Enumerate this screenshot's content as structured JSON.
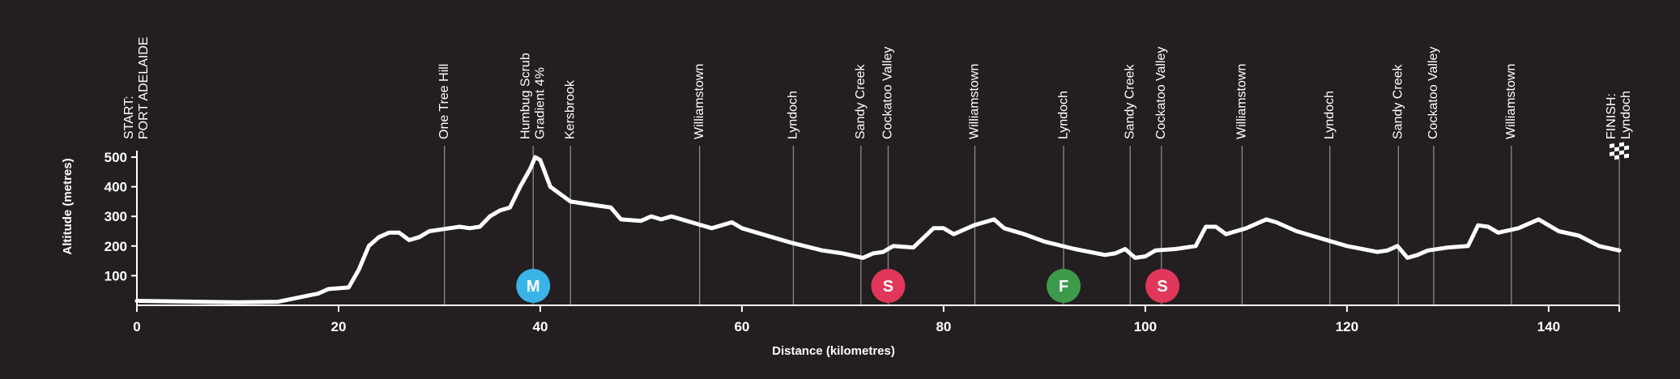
{
  "chart_data": {
    "type": "line",
    "color": "#ffffff",
    "background": "#231f20",
    "x_label": "Distance (kilometres)",
    "y_label": "Altitude (metres)",
    "xlim": [
      0,
      147
    ],
    "ylim": [
      0,
      500
    ],
    "xticks": [
      0,
      20,
      40,
      60,
      80,
      100,
      120,
      140
    ],
    "yticks": [
      100,
      200,
      300,
      400,
      500
    ],
    "x": [
      0,
      10,
      14,
      18,
      19,
      21,
      22,
      23,
      24,
      25,
      26,
      27,
      28,
      29,
      31,
      32,
      33,
      34,
      35,
      36,
      37,
      38,
      39,
      39.5,
      40,
      41,
      43,
      45,
      47,
      48,
      50,
      51,
      52,
      53,
      55,
      57,
      59,
      60,
      62,
      65,
      68,
      70,
      72,
      73,
      74,
      75,
      77,
      79,
      80,
      81,
      83,
      85,
      86,
      88,
      90,
      93,
      96,
      97,
      98,
      99,
      100,
      101,
      103,
      105,
      106,
      107,
      108,
      110,
      112,
      113,
      115,
      117,
      120,
      123,
      124,
      125,
      126,
      127,
      128,
      130,
      132,
      133,
      134,
      135,
      137,
      139,
      140,
      141,
      143,
      145,
      147
    ],
    "values": [
      15,
      10,
      12,
      40,
      55,
      60,
      120,
      200,
      230,
      245,
      245,
      220,
      230,
      250,
      260,
      265,
      260,
      265,
      300,
      320,
      330,
      400,
      460,
      500,
      490,
      400,
      350,
      340,
      330,
      290,
      285,
      300,
      290,
      300,
      280,
      260,
      280,
      260,
      240,
      210,
      185,
      175,
      160,
      175,
      180,
      200,
      195,
      260,
      260,
      240,
      270,
      290,
      260,
      240,
      215,
      190,
      170,
      175,
      190,
      160,
      165,
      185,
      190,
      200,
      265,
      265,
      240,
      260,
      290,
      280,
      250,
      230,
      200,
      180,
      185,
      200,
      160,
      170,
      185,
      195,
      200,
      270,
      265,
      245,
      260,
      290,
      270,
      250,
      235,
      200,
      185
    ],
    "landmarks": [
      {
        "label": [
          "START:",
          "PORT ADELAIDE"
        ],
        "x": 0,
        "line": false
      },
      {
        "label": [
          "One Tree Hill"
        ],
        "x": 30.5
      },
      {
        "label": [
          "Humbug Scrub",
          "Gradient 4%"
        ],
        "x": 39.3
      },
      {
        "label": [
          "Kersbrook"
        ],
        "x": 43.0
      },
      {
        "label": [
          "Williamstown"
        ],
        "x": 55.8
      },
      {
        "label": [
          "Lyndoch"
        ],
        "x": 65.1
      },
      {
        "label": [
          "Sandy Creek"
        ],
        "x": 71.8
      },
      {
        "label": [
          "Cockatoo Valley"
        ],
        "x": 74.5
      },
      {
        "label": [
          "Williamstown"
        ],
        "x": 83.1
      },
      {
        "label": [
          "Lyndoch"
        ],
        "x": 91.9
      },
      {
        "label": [
          "Sandy Creek"
        ],
        "x": 98.5
      },
      {
        "label": [
          "Cockatoo Valley"
        ],
        "x": 101.6
      },
      {
        "label": [
          "Williamstown"
        ],
        "x": 109.6
      },
      {
        "label": [
          "Lyndoch"
        ],
        "x": 118.3
      },
      {
        "label": [
          "Sandy Creek"
        ],
        "x": 125.1
      },
      {
        "label": [
          "Cockatoo Valley"
        ],
        "x": 128.6
      },
      {
        "label": [
          "Williamstown"
        ],
        "x": 136.3
      },
      {
        "label": [
          "FINISH:",
          "Lyndoch"
        ],
        "x": 147
      }
    ],
    "sprints": [
      {
        "label": "M",
        "x": 39.3,
        "color": "#3ab4e6"
      },
      {
        "label": "S",
        "x": 74.5,
        "color": "#e0375a"
      },
      {
        "label": "F",
        "x": 91.9,
        "color": "#3d9a4a"
      },
      {
        "label": "S",
        "x": 101.7,
        "color": "#e0375a"
      }
    ]
  }
}
